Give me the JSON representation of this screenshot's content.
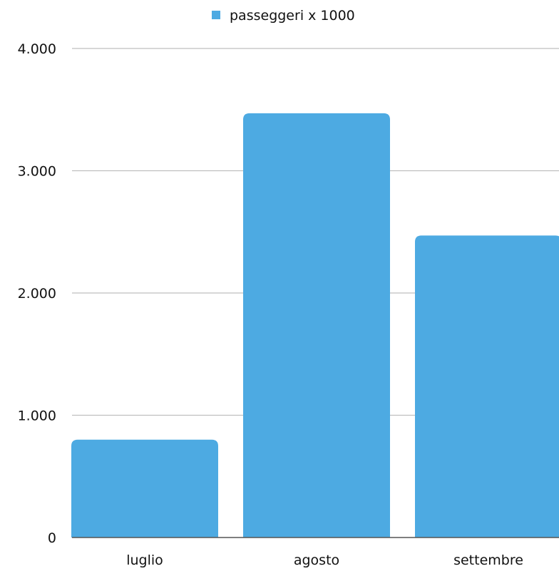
{
  "chart_data": {
    "type": "bar",
    "categories": [
      "luglio",
      "agosto",
      "settembre"
    ],
    "series": [
      {
        "name": "passeggeri x 1000",
        "values": [
          800,
          3470,
          2470
        ],
        "color": "#4DAAE2"
      }
    ],
    "legend": {
      "position": "top",
      "entries": [
        "passeggeri x 1000"
      ]
    },
    "ylim": [
      0,
      4000
    ],
    "yticks": [
      0,
      1000,
      2000,
      3000,
      4000
    ],
    "ytick_labels": [
      "0",
      "1.000",
      "2.000",
      "3.000",
      "4.000"
    ],
    "grid": true,
    "grid_color": "#BFBFBF",
    "axis_color": "#555555"
  }
}
